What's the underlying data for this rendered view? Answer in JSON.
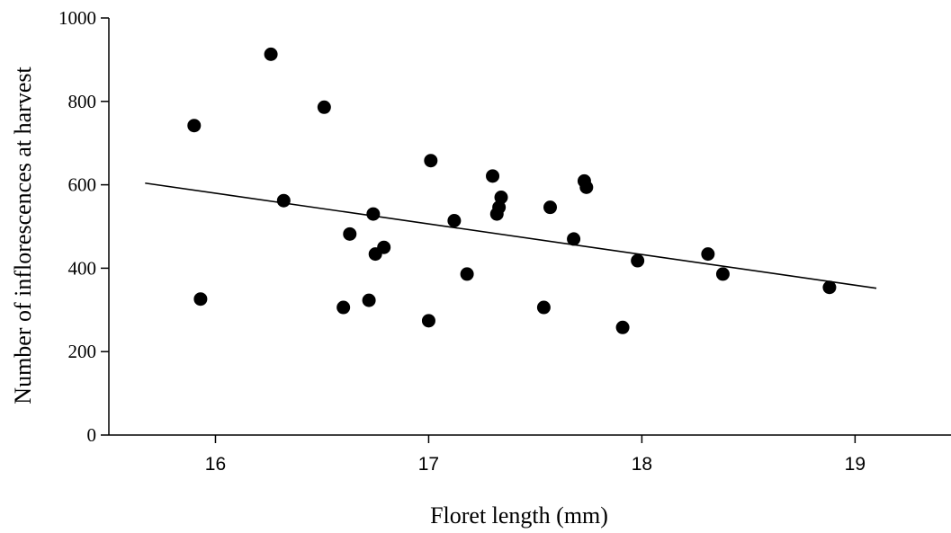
{
  "chart_data": {
    "type": "scatter",
    "xlabel": "Floret length (mm)",
    "ylabel": "Number of inflorescences at harvest",
    "xlim": [
      15.5,
      19.45
    ],
    "ylim": [
      0,
      1000
    ],
    "xticks": [
      16,
      17,
      18,
      19
    ],
    "yticks": [
      0,
      200,
      400,
      600,
      800,
      1000
    ],
    "points": [
      {
        "x": 15.9,
        "y": 742
      },
      {
        "x": 15.93,
        "y": 326
      },
      {
        "x": 16.26,
        "y": 913
      },
      {
        "x": 16.32,
        "y": 562
      },
      {
        "x": 16.51,
        "y": 786
      },
      {
        "x": 16.6,
        "y": 306
      },
      {
        "x": 16.63,
        "y": 482
      },
      {
        "x": 16.72,
        "y": 323
      },
      {
        "x": 16.74,
        "y": 530
      },
      {
        "x": 16.75,
        "y": 434
      },
      {
        "x": 16.79,
        "y": 450
      },
      {
        "x": 17.0,
        "y": 274
      },
      {
        "x": 17.01,
        "y": 658
      },
      {
        "x": 17.12,
        "y": 514
      },
      {
        "x": 17.18,
        "y": 386
      },
      {
        "x": 17.3,
        "y": 621
      },
      {
        "x": 17.32,
        "y": 530
      },
      {
        "x": 17.33,
        "y": 546
      },
      {
        "x": 17.34,
        "y": 570
      },
      {
        "x": 17.54,
        "y": 306
      },
      {
        "x": 17.57,
        "y": 546
      },
      {
        "x": 17.68,
        "y": 470
      },
      {
        "x": 17.73,
        "y": 609
      },
      {
        "x": 17.74,
        "y": 594
      },
      {
        "x": 17.91,
        "y": 258
      },
      {
        "x": 17.98,
        "y": 418
      },
      {
        "x": 18.31,
        "y": 434
      },
      {
        "x": 18.38,
        "y": 386
      },
      {
        "x": 18.88,
        "y": 354
      }
    ],
    "trendline": {
      "x": [
        15.67,
        19.1
      ],
      "y": [
        604,
        352
      ]
    }
  }
}
